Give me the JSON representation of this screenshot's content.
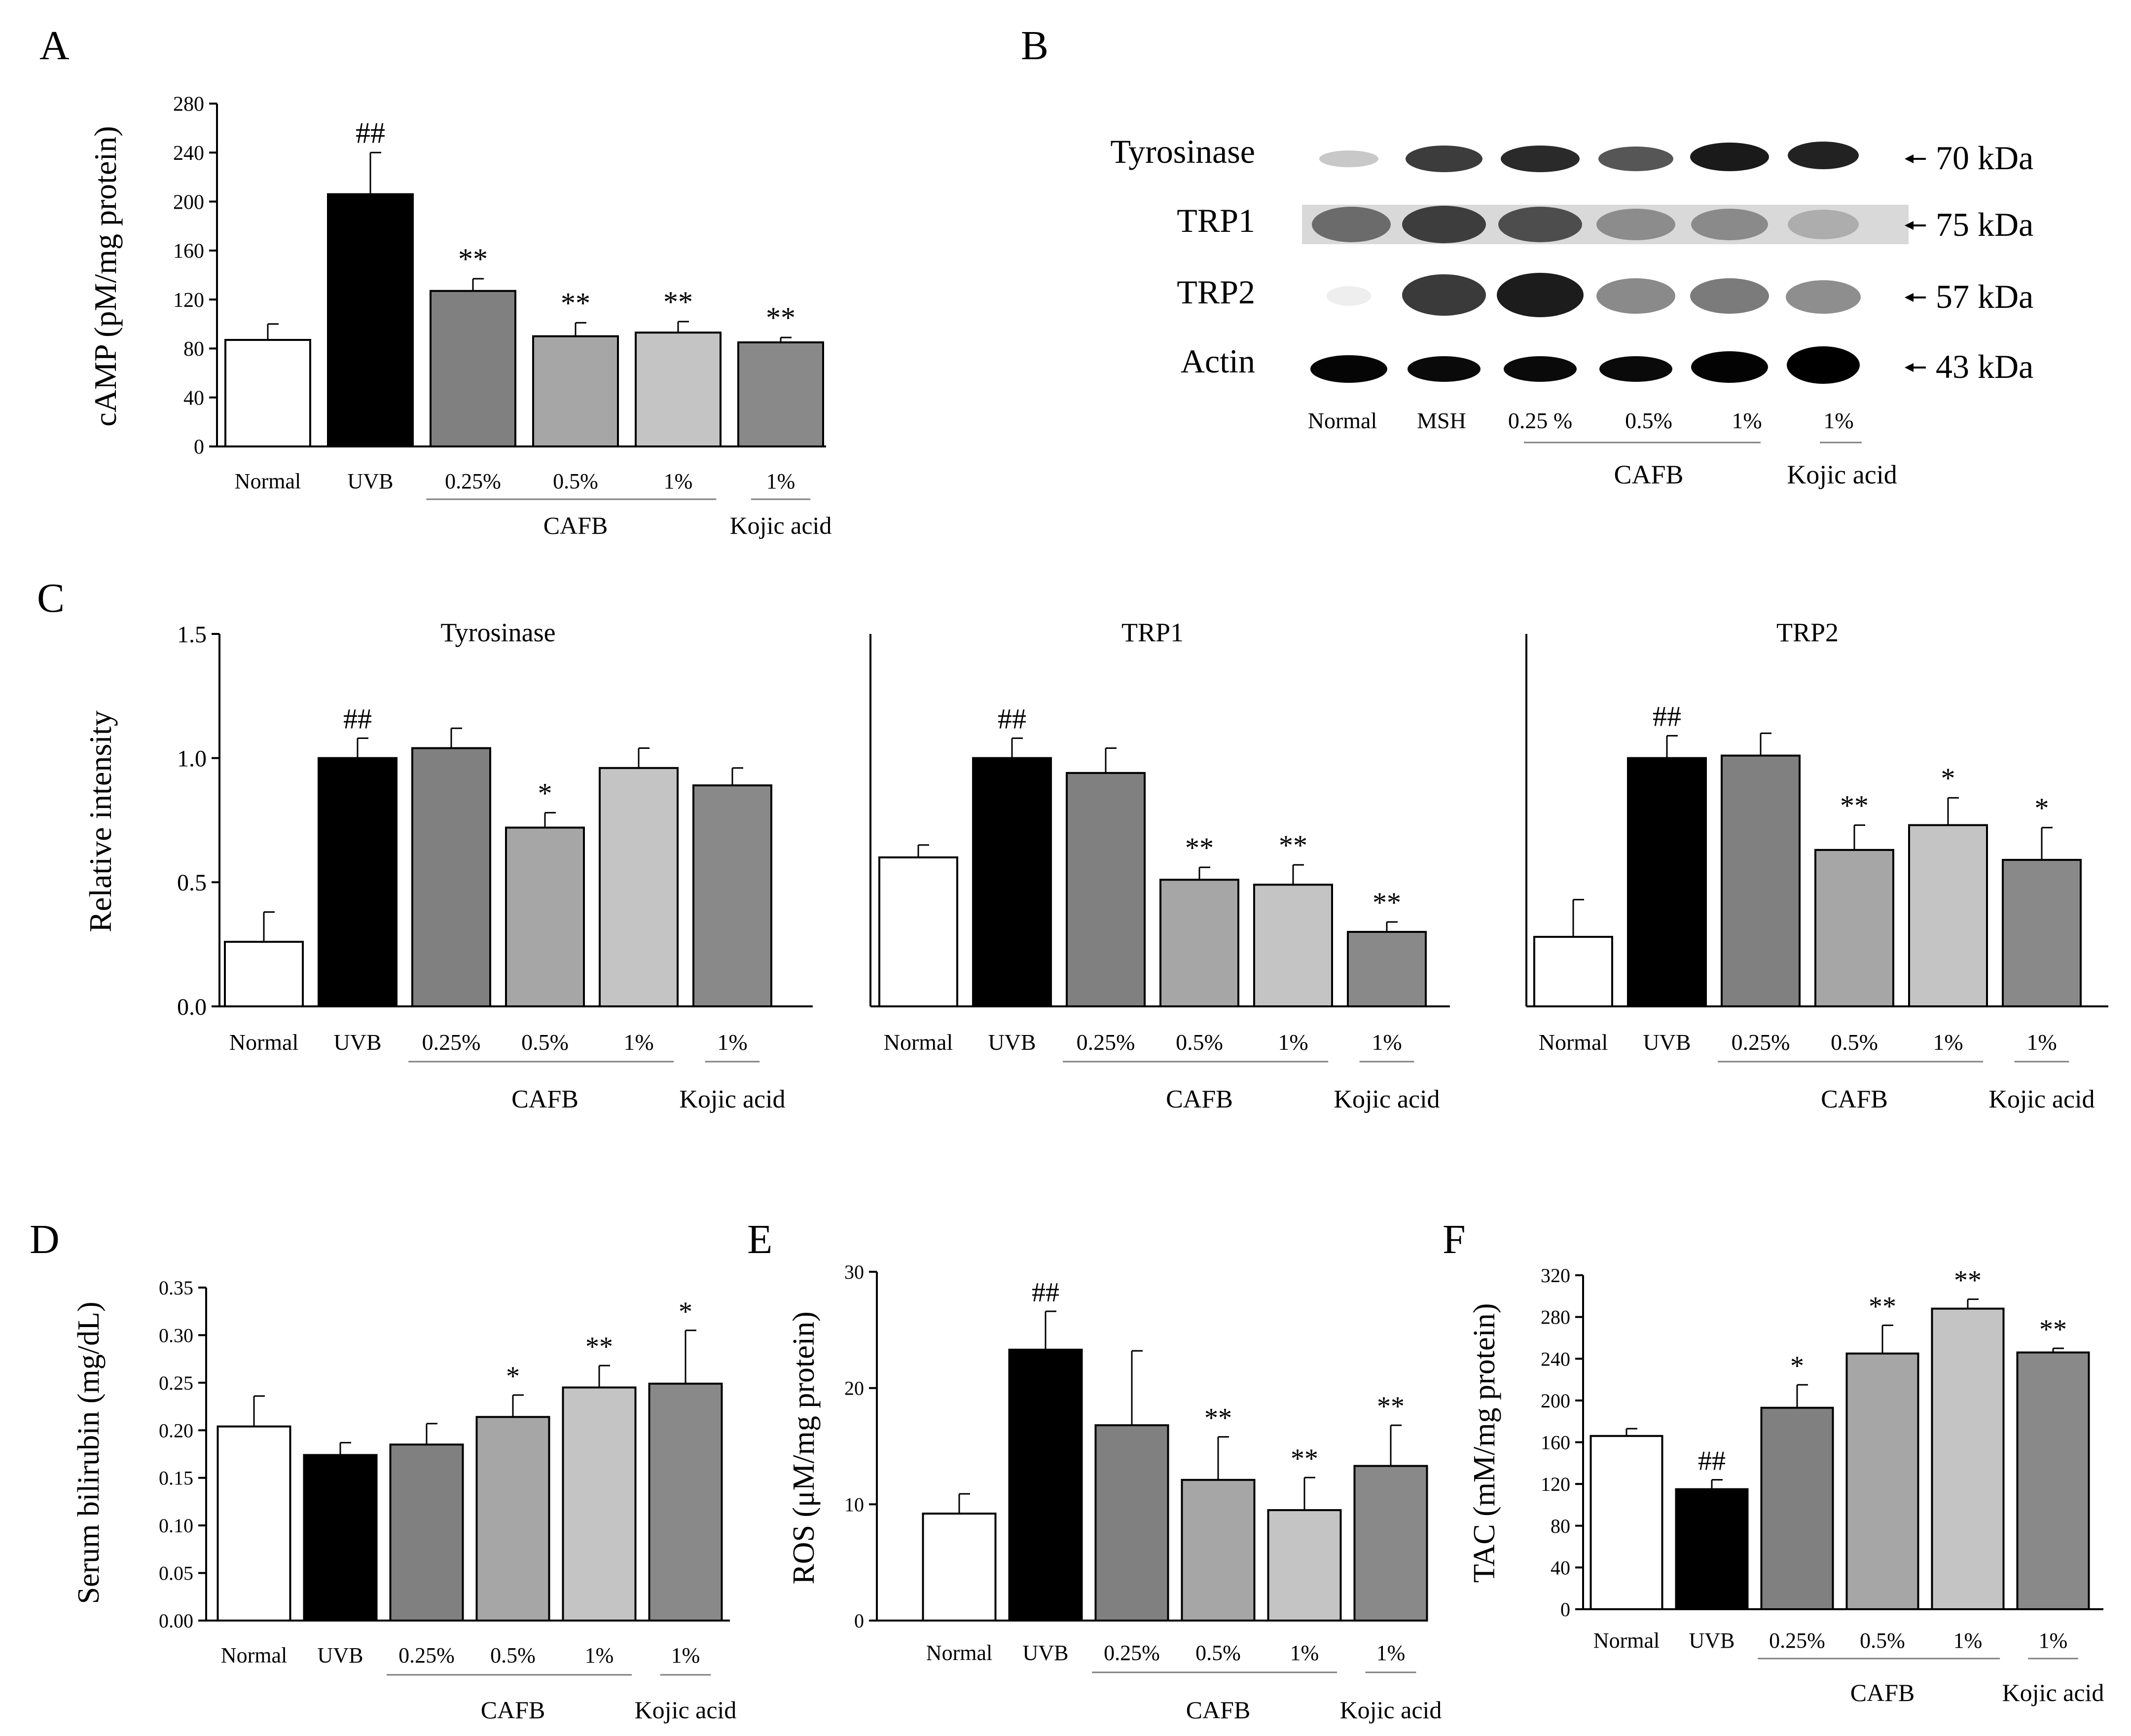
{
  "colors": {
    "normal": "#ffffff",
    "uvb": "#000000",
    "c025": "#808080",
    "c05": "#a6a6a6",
    "c1": "#c4c4c4",
    "kojic": "#898989",
    "axis": "#000000",
    "bracket": "#7f7f7f"
  },
  "panel_labels": {
    "a": "A",
    "b": "B",
    "c": "C",
    "d": "D",
    "e": "E",
    "f": "F"
  },
  "group_labels": {
    "cafb": "CAFB",
    "kojic": "Kojic acid"
  },
  "blot": {
    "proteins": [
      {
        "name": "Tyrosinase",
        "size": "70 kDa"
      },
      {
        "name": "TRP1",
        "size": "75 kDa"
      },
      {
        "name": "TRP2",
        "size": "57 kDa"
      },
      {
        "name": "Actin",
        "size": "43 kDa"
      }
    ],
    "lanes": [
      "Normal",
      "MSH",
      "0.25 %",
      "0.5%",
      "1%",
      "1%"
    ],
    "cafb_label": "CAFB",
    "kojic_label": "Kojic acid"
  },
  "chart_data": [
    {
      "panel": "A",
      "type": "bar",
      "title": "",
      "ylabel": "cAMP (pM/mg protein)",
      "ylim": [
        0,
        280
      ],
      "yticks": [
        "0",
        "40",
        "80",
        "120",
        "160",
        "200",
        "240",
        "280"
      ],
      "categories": [
        "Normal",
        "UVB",
        "0.25%",
        "0.5%",
        "1%",
        "1%"
      ],
      "values": [
        87,
        206,
        127,
        90,
        93,
        85
      ],
      "errors": [
        13,
        34,
        10,
        11,
        9,
        4
      ],
      "annotations": [
        "",
        "##",
        "**",
        "**",
        "**",
        "**"
      ]
    },
    {
      "panel": "C",
      "type": "bar",
      "title": "Tyrosinase",
      "ylabel": "Relative intensity",
      "ylim": [
        0,
        1.5
      ],
      "yticks": [
        "0.0",
        "0.5",
        "1.0",
        "1.5"
      ],
      "categories": [
        "Normal",
        "UVB",
        "0.25%",
        "0.5%",
        "1%",
        "1%"
      ],
      "values": [
        0.26,
        1.0,
        1.04,
        0.72,
        0.96,
        0.89
      ],
      "errors": [
        0.12,
        0.08,
        0.08,
        0.06,
        0.08,
        0.07
      ],
      "annotations": [
        "",
        "##",
        "",
        "*",
        "",
        ""
      ]
    },
    {
      "panel": "C",
      "type": "bar",
      "title": "TRP1",
      "ylabel": "Relative intensity",
      "ylim": [
        0,
        1.5
      ],
      "categories": [
        "Normal",
        "UVB",
        "0.25%",
        "0.5%",
        "1%",
        "1%"
      ],
      "values": [
        0.6,
        1.0,
        0.94,
        0.51,
        0.49,
        0.3
      ],
      "errors": [
        0.05,
        0.08,
        0.1,
        0.05,
        0.08,
        0.04
      ],
      "annotations": [
        "",
        "##",
        "",
        "**",
        "**",
        "**"
      ]
    },
    {
      "panel": "C",
      "type": "bar",
      "title": "TRP2",
      "ylabel": "Relative intensity",
      "ylim": [
        0,
        1.5
      ],
      "categories": [
        "Normal",
        "UVB",
        "0.25%",
        "0.5%",
        "1%",
        "1%"
      ],
      "values": [
        0.28,
        1.0,
        1.01,
        0.63,
        0.73,
        0.59
      ],
      "errors": [
        0.15,
        0.09,
        0.09,
        0.1,
        0.11,
        0.13
      ],
      "annotations": [
        "",
        "##",
        "",
        "**",
        "*",
        "*"
      ]
    },
    {
      "panel": "D",
      "type": "bar",
      "title": "",
      "ylabel": "Serum bilirubin (mg/dL)",
      "ylim": [
        0,
        0.35
      ],
      "yticks": [
        "0.00",
        "0.05",
        "0.10",
        "0.15",
        "0.20",
        "0.25",
        "0.30",
        "0.35"
      ],
      "categories": [
        "Normal",
        "UVB",
        "0.25%",
        "0.5%",
        "1%",
        "1%"
      ],
      "values": [
        0.204,
        0.174,
        0.185,
        0.214,
        0.245,
        0.249
      ],
      "errors": [
        0.032,
        0.013,
        0.022,
        0.023,
        0.023,
        0.056
      ],
      "annotations": [
        "",
        "",
        "",
        "*",
        "**",
        "*"
      ]
    },
    {
      "panel": "E",
      "type": "bar",
      "title": "",
      "ylabel": "ROS (μM/mg protein)",
      "ylim": [
        0,
        30
      ],
      "yticks": [
        "0",
        "10",
        "20",
        "30"
      ],
      "categories": [
        "Normal",
        "UVB",
        "0.25%",
        "0.5%",
        "1%",
        "1%"
      ],
      "values": [
        9.2,
        23.3,
        16.8,
        12.1,
        9.5,
        13.3
      ],
      "errors": [
        1.7,
        3.3,
        6.4,
        3.7,
        2.8,
        3.5
      ],
      "annotations": [
        "",
        "##",
        "",
        "**",
        "**",
        "**"
      ]
    },
    {
      "panel": "F",
      "type": "bar",
      "title": "",
      "ylabel": "TAC (mM/mg protein)",
      "ylim": [
        0,
        320
      ],
      "yticks": [
        "0",
        "40",
        "80",
        "120",
        "160",
        "200",
        "240",
        "280",
        "320"
      ],
      "categories": [
        "Normal",
        "UVB",
        "0.25%",
        "0.5%",
        "1%",
        "1%"
      ],
      "values": [
        166,
        115,
        193,
        245,
        288,
        246
      ],
      "errors": [
        7,
        9,
        22,
        27,
        9,
        4
      ],
      "annotations": [
        "",
        "##",
        "*",
        "**",
        "**",
        "**"
      ]
    }
  ]
}
